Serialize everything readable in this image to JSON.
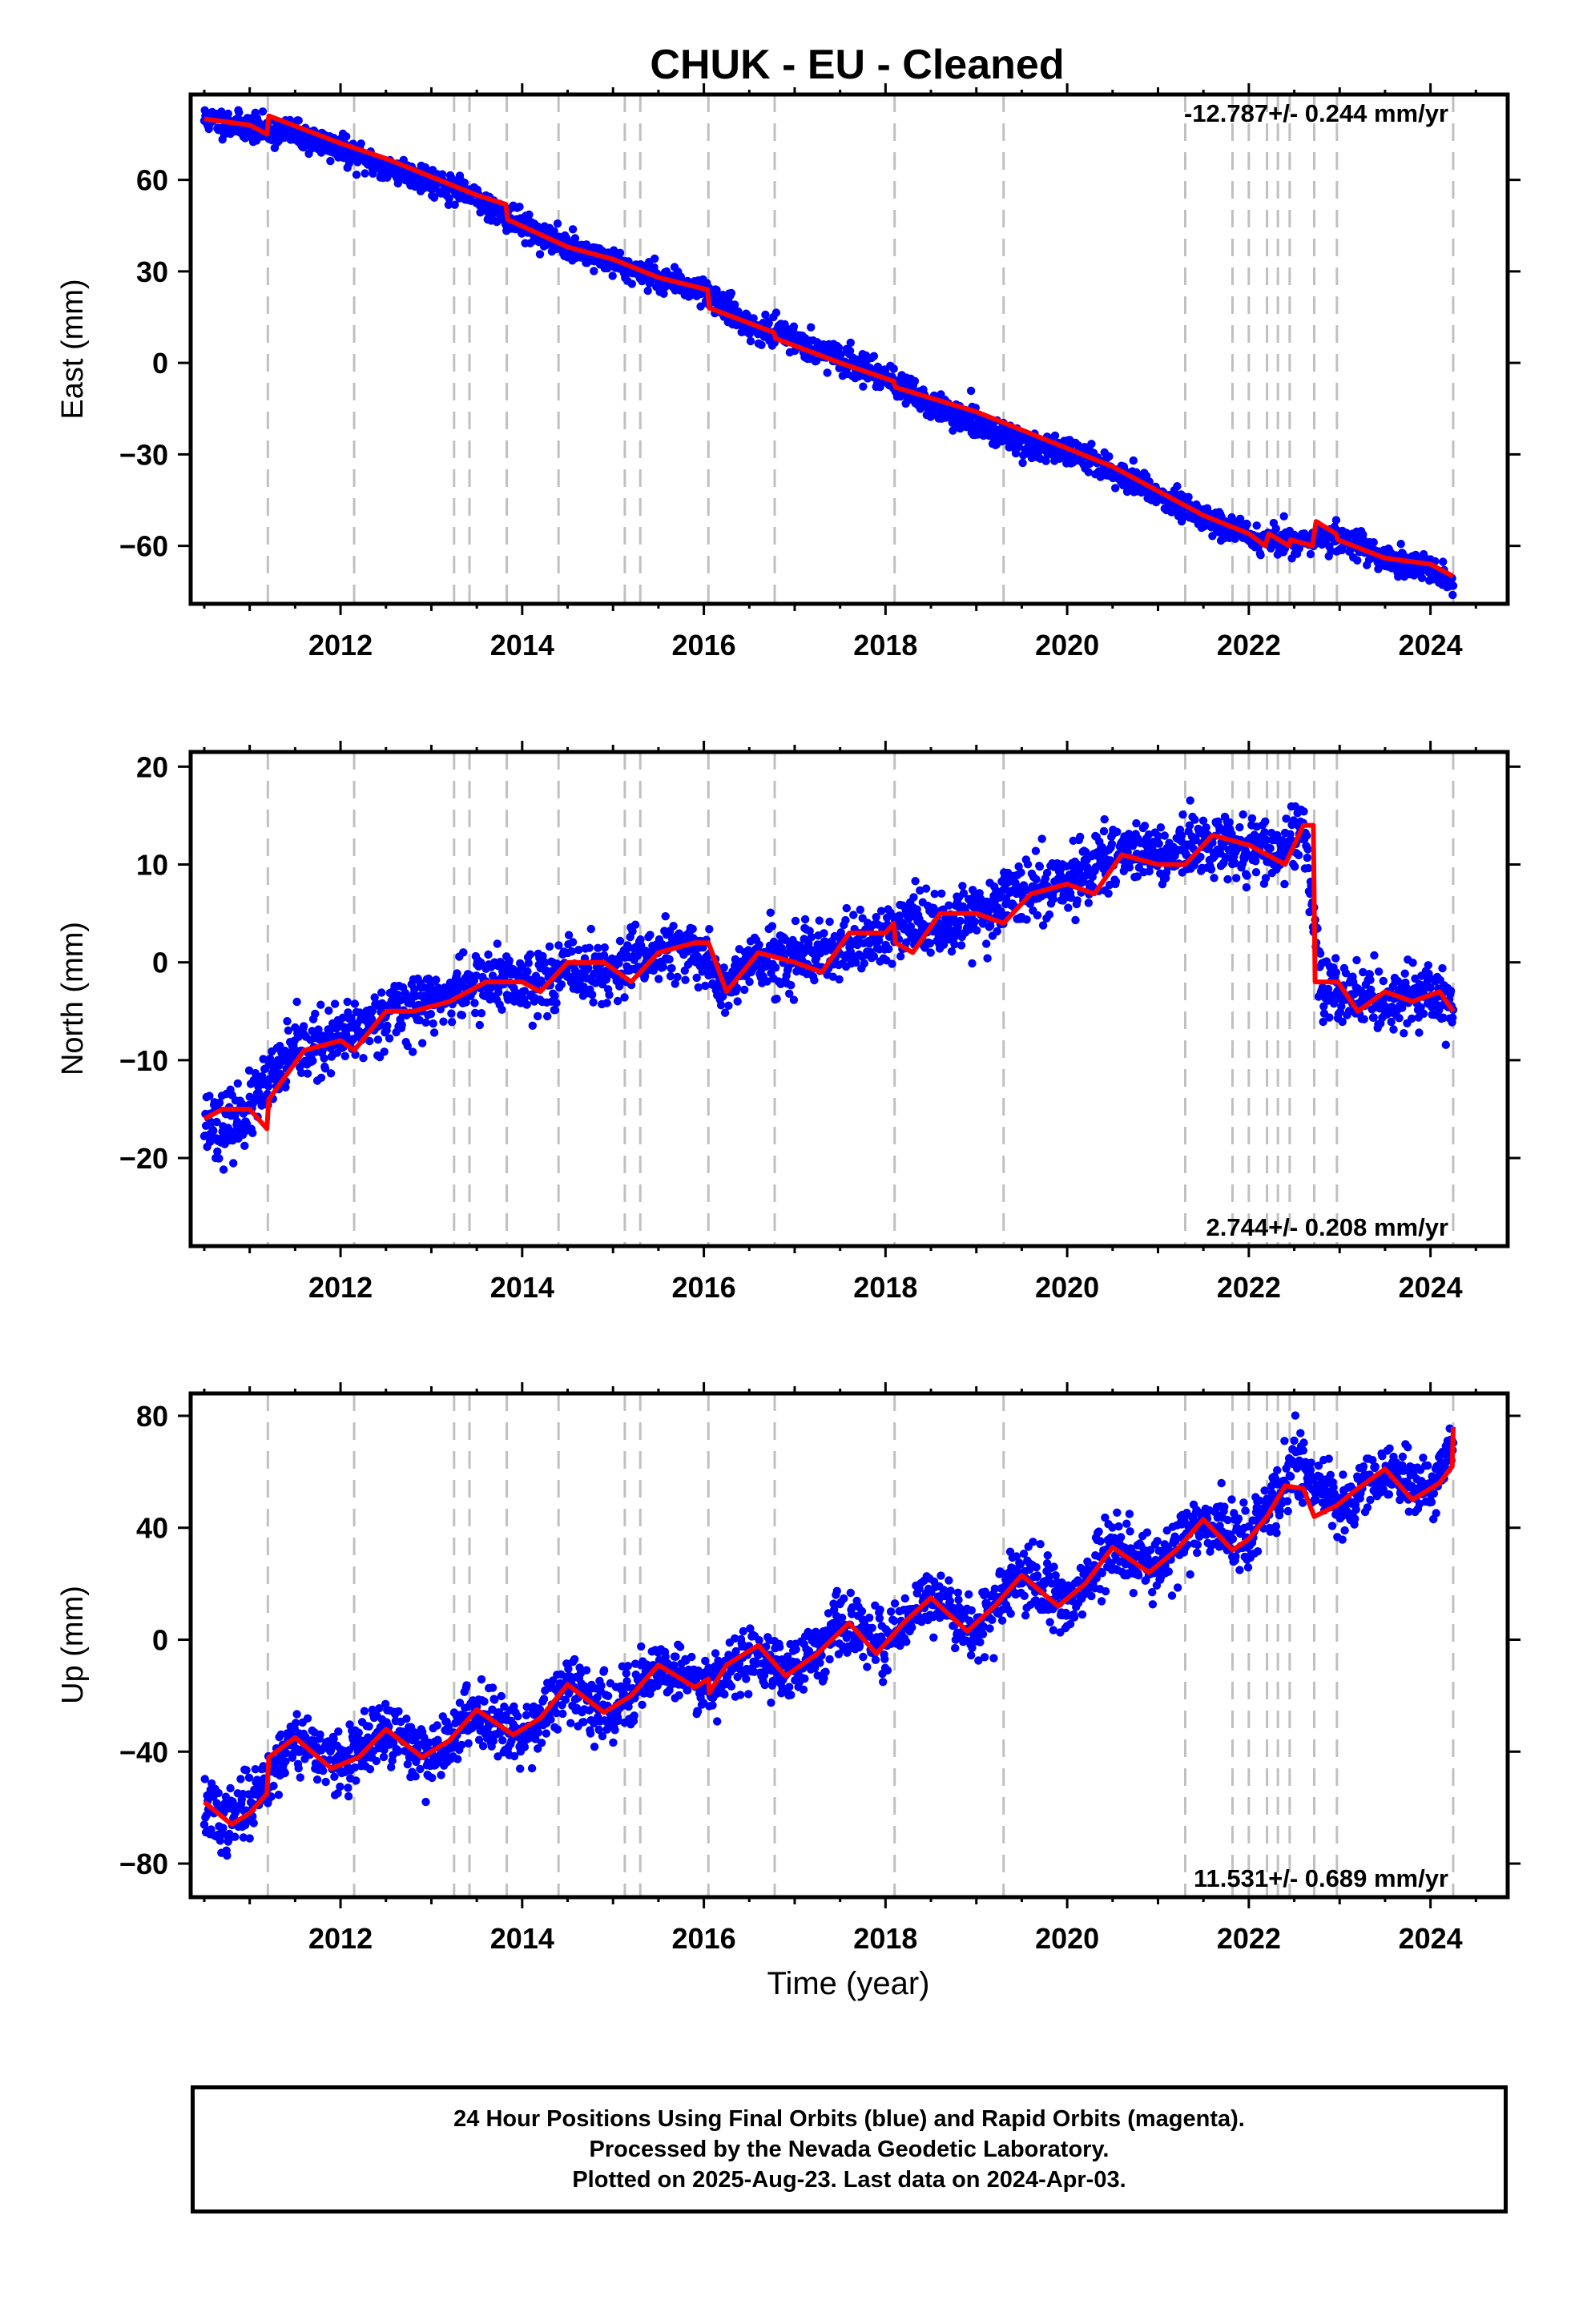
{
  "title": "CHUK  - EU - Cleaned",
  "xlabel": "Time (year)",
  "x_ticks": [
    "2012",
    "2014",
    "2016",
    "2018",
    "2020",
    "2022",
    "2024"
  ],
  "caption": {
    "line1": "24 Hour Positions Using Final Orbits (blue) and Rapid Orbits (magenta).",
    "line2": "Processed by the Nevada Geodetic Laboratory.",
    "line3": "Plotted on 2025-Aug-23. Last data on 2024-Apr-03."
  },
  "colors": {
    "points": "#0000ff",
    "model": "#ff0000",
    "event_lines": "#c0c0c0",
    "axes": "#000000"
  },
  "chart_data": [
    {
      "type": "scatter",
      "ylabel": "East (mm)",
      "xlim": [
        2010.35,
        2024.85
      ],
      "ylim": [
        -79,
        88
      ],
      "yticks": [
        -60,
        -30,
        0,
        30,
        60
      ],
      "grid": false,
      "rate_label": "-12.787+/- 0.244 mm/yr",
      "rate_position": "top-right",
      "event_lines_x": [
        2011.2,
        2012.15,
        2013.25,
        2013.42,
        2013.83,
        2014.4,
        2015.13,
        2015.3,
        2016.05,
        2016.78,
        2018.1,
        2019.3,
        2021.3,
        2021.82,
        2022.0,
        2022.2,
        2022.32,
        2022.45,
        2022.72,
        2022.97,
        2024.25
      ],
      "series": [
        {
          "role": "daily positions",
          "color": "#0000ff",
          "x": [
            2010.5,
            2011.0,
            2011.5,
            2012.0,
            2012.5,
            2013.0,
            2013.5,
            2014.0,
            2014.5,
            2015.0,
            2015.5,
            2016.0,
            2016.5,
            2017.0,
            2017.5,
            2018.0,
            2018.5,
            2019.0,
            2019.5,
            2020.0,
            2020.5,
            2021.0,
            2021.5,
            2022.0,
            2022.5,
            2023.0,
            2023.5,
            2024.0,
            2024.25
          ],
          "y": [
            80,
            77,
            75,
            70,
            64,
            60,
            54,
            45,
            38,
            33,
            28,
            24,
            12,
            8,
            1,
            -4,
            -14,
            -20,
            -26,
            -29,
            -35,
            -43,
            -50,
            -57,
            -59,
            -57,
            -64,
            -68,
            -73
          ]
        },
        {
          "role": "model",
          "color": "#ff0000",
          "x": [
            2010.5,
            2011.0,
            2011.19,
            2011.21,
            2012.0,
            2012.5,
            2013.0,
            2013.5,
            2013.82,
            2013.84,
            2014.5,
            2015.0,
            2015.5,
            2016.04,
            2016.06,
            2016.77,
            2016.79,
            2017.5,
            2018.09,
            2018.11,
            2019.0,
            2019.5,
            2020.0,
            2020.5,
            2021.0,
            2021.5,
            2022.0,
            2022.18,
            2022.22,
            2022.44,
            2022.46,
            2022.7,
            2022.74,
            2022.96,
            2022.98,
            2023.5,
            2024.0,
            2024.25
          ],
          "y": [
            80,
            78,
            75,
            81,
            72,
            67,
            61,
            55,
            52,
            47,
            38,
            34,
            28,
            24,
            18,
            10,
            8,
            0,
            -6,
            -8,
            -16,
            -22,
            -28,
            -34,
            -42,
            -50,
            -56,
            -60,
            -56,
            -60,
            -58,
            -60,
            -52,
            -56,
            -58,
            -64,
            -66,
            -70
          ]
        }
      ]
    },
    {
      "type": "scatter",
      "ylabel": "North (mm)",
      "xlim": [
        2010.35,
        2024.85
      ],
      "ylim": [
        -29,
        21.5
      ],
      "yticks": [
        -20,
        -10,
        0,
        10,
        20
      ],
      "grid": false,
      "rate_label": "2.744+/- 0.208 mm/yr",
      "rate_position": "bottom-right",
      "event_lines_x": [
        2011.2,
        2012.15,
        2013.25,
        2013.42,
        2013.83,
        2014.4,
        2015.13,
        2015.3,
        2016.05,
        2016.78,
        2018.1,
        2019.3,
        2021.3,
        2021.82,
        2022.0,
        2022.2,
        2022.32,
        2022.45,
        2022.72,
        2022.97,
        2024.25
      ],
      "series": [
        {
          "role": "daily positions",
          "color": "#0000ff",
          "x": [
            2010.5,
            2010.75,
            2011.0,
            2011.5,
            2012.0,
            2012.5,
            2013.0,
            2013.5,
            2014.0,
            2014.5,
            2015.0,
            2015.5,
            2016.0,
            2016.25,
            2016.5,
            2017.0,
            2017.5,
            2018.0,
            2018.5,
            2019.0,
            2019.5,
            2020.0,
            2020.5,
            2021.0,
            2021.5,
            2022.0,
            2022.3,
            2022.6,
            2022.8,
            2023.0,
            2023.5,
            2024.0,
            2024.25
          ],
          "y": [
            -16,
            -17,
            -15,
            -9,
            -8,
            -5,
            -4,
            -2,
            -2,
            -1,
            -1,
            1,
            1,
            -3,
            0,
            0,
            1,
            3,
            4,
            5,
            7,
            8,
            11,
            11,
            12,
            12,
            11,
            14,
            -2,
            -3,
            -4,
            -3,
            -5
          ]
        },
        {
          "role": "model",
          "color": "#ff0000",
          "x": [
            2010.5,
            2010.7,
            2011.0,
            2011.19,
            2011.21,
            2011.6,
            2012.0,
            2012.15,
            2012.5,
            2012.8,
            2013.2,
            2013.6,
            2014.0,
            2014.2,
            2014.5,
            2014.9,
            2015.2,
            2015.5,
            2015.9,
            2016.05,
            2016.25,
            2016.6,
            2017.0,
            2017.3,
            2017.6,
            2018.0,
            2018.09,
            2018.11,
            2018.3,
            2018.6,
            2019.0,
            2019.3,
            2019.6,
            2020.0,
            2020.3,
            2020.6,
            2021.0,
            2021.3,
            2021.6,
            2022.0,
            2022.2,
            2022.4,
            2022.6,
            2022.71,
            2022.73,
            2022.96,
            2022.98,
            2023.2,
            2023.5,
            2023.8,
            2024.1,
            2024.25
          ],
          "y": [
            -16,
            -15,
            -15,
            -17,
            -14,
            -9,
            -8,
            -9,
            -5,
            -5,
            -4,
            -2,
            -2,
            -3,
            0,
            0,
            -2,
            1,
            2,
            2,
            -3,
            1,
            0,
            -1,
            3,
            3,
            4,
            2,
            1,
            5,
            5,
            4,
            7,
            8,
            7,
            11,
            10,
            10,
            13,
            12,
            11,
            10,
            14,
            14,
            -2,
            -2,
            -2,
            -5,
            -3,
            -4,
            -3,
            -5
          ]
        }
      ]
    },
    {
      "type": "scatter",
      "ylabel": "Up (mm)",
      "xlim": [
        2010.35,
        2024.85
      ],
      "ylim": [
        -92,
        88
      ],
      "yticks": [
        -80,
        -40,
        0,
        40,
        80
      ],
      "grid": false,
      "rate_label": "11.531+/- 0.689 mm/yr",
      "rate_position": "bottom-right",
      "event_lines_x": [
        2011.2,
        2012.15,
        2013.25,
        2013.42,
        2013.83,
        2014.4,
        2015.13,
        2015.3,
        2016.05,
        2016.78,
        2018.1,
        2019.3,
        2021.3,
        2021.82,
        2022.0,
        2022.2,
        2022.32,
        2022.45,
        2022.72,
        2022.97,
        2024.25
      ],
      "series": [
        {
          "role": "daily positions",
          "color": "#0000ff",
          "x": [
            2010.5,
            2010.75,
            2011.0,
            2011.5,
            2012.0,
            2012.5,
            2013.0,
            2013.5,
            2014.0,
            2014.5,
            2015.0,
            2015.5,
            2016.0,
            2016.5,
            2017.0,
            2017.5,
            2018.0,
            2018.5,
            2019.0,
            2019.5,
            2020.0,
            2020.5,
            2021.0,
            2021.5,
            2022.0,
            2022.5,
            2023.0,
            2023.5,
            2024.0,
            2024.25
          ],
          "y": [
            -60,
            -66,
            -58,
            -35,
            -45,
            -33,
            -42,
            -25,
            -34,
            -18,
            -25,
            -9,
            -16,
            -6,
            -11,
            5,
            -2,
            15,
            4,
            23,
            12,
            33,
            26,
            43,
            34,
            62,
            46,
            60,
            54,
            70
          ]
        },
        {
          "role": "model",
          "color": "#ff0000",
          "x": [
            2010.5,
            2010.8,
            2011.0,
            2011.19,
            2011.21,
            2011.5,
            2011.9,
            2012.2,
            2012.5,
            2012.9,
            2013.2,
            2013.5,
            2013.9,
            2014.2,
            2014.5,
            2014.9,
            2015.2,
            2015.5,
            2015.9,
            2016.05,
            2016.06,
            2016.25,
            2016.6,
            2016.9,
            2017.25,
            2017.6,
            2017.9,
            2018.2,
            2018.5,
            2018.9,
            2019.2,
            2019.5,
            2019.9,
            2020.2,
            2020.5,
            2020.9,
            2021.2,
            2021.5,
            2021.82,
            2022.0,
            2022.2,
            2022.4,
            2022.6,
            2022.72,
            2022.97,
            2023.2,
            2023.5,
            2023.8,
            2024.1,
            2024.24,
            2024.25
          ],
          "y": [
            -58,
            -66,
            -62,
            -55,
            -42,
            -35,
            -46,
            -42,
            -32,
            -42,
            -36,
            -25,
            -34,
            -28,
            -16,
            -26,
            -20,
            -9,
            -17,
            -14,
            -19,
            -9,
            -2,
            -13,
            -5,
            6,
            -5,
            6,
            15,
            3,
            12,
            23,
            12,
            20,
            33,
            24,
            32,
            43,
            32,
            36,
            44,
            55,
            54,
            44,
            48,
            54,
            61,
            50,
            56,
            62,
            76
          ]
        }
      ]
    }
  ]
}
